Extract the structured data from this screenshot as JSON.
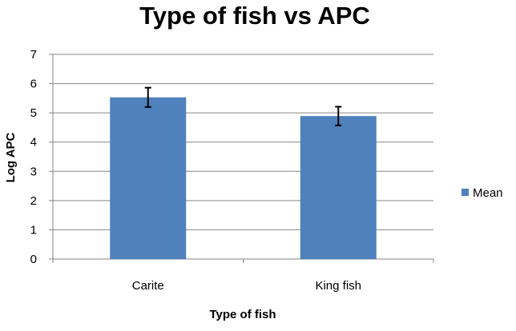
{
  "chart_data": {
    "type": "bar",
    "title": "Type of fish vs APC",
    "xlabel": "Type of fish",
    "ylabel": "Log  APC",
    "categories": [
      "Carite",
      "King fish"
    ],
    "series": [
      {
        "name": "Mean",
        "values": [
          5.53,
          4.89
        ],
        "error": [
          0.33,
          0.32
        ],
        "color": "#4F81BD"
      }
    ],
    "ylim": [
      0,
      7
    ],
    "yticks": [
      "0",
      "1",
      "2",
      "3",
      "4",
      "5",
      "6",
      "7"
    ],
    "grid": true,
    "legend_position": "right"
  }
}
